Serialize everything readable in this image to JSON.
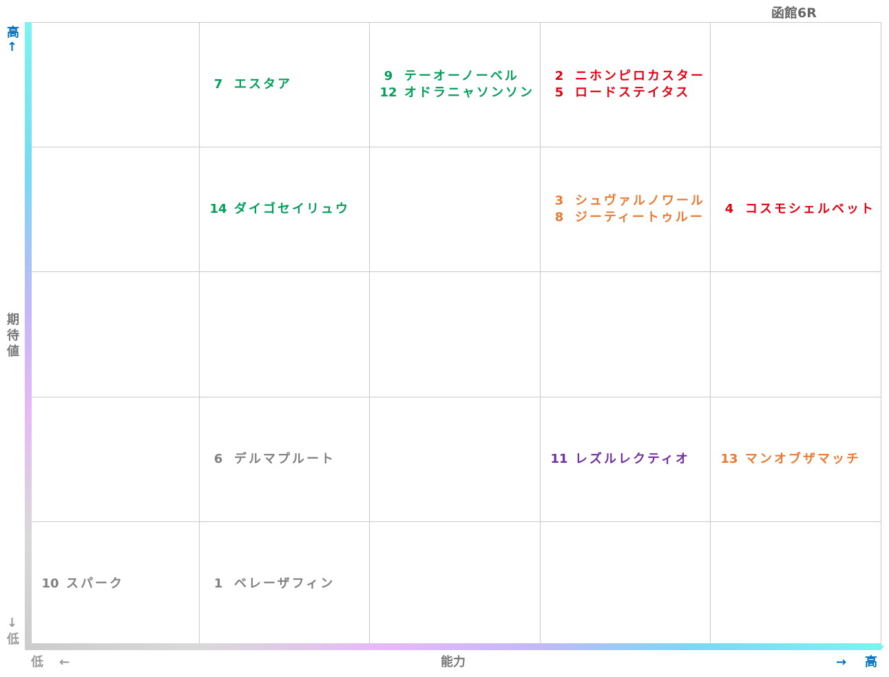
{
  "chart_data": {
    "type": "table",
    "title": "函館6R",
    "ylabel": "期待値",
    "xlabel": "能力",
    "y_high": "高",
    "y_low": "低",
    "x_low": "低",
    "x_high": "高",
    "up_arrow": "↑",
    "down_arrow": "↓",
    "left_arrow": "←",
    "right_arrow": "→",
    "rows": 5,
    "cols": 5,
    "colors": {
      "green": "#00a05a",
      "red": "#e60012",
      "orange": "#ea7a32",
      "purple": "#7030a0",
      "gray": "#808080",
      "blue": "#0070c0"
    },
    "entries": [
      {
        "no": "7",
        "name": "エスタア",
        "row": 0,
        "col": 1,
        "color": "green"
      },
      {
        "no": "9",
        "name": "テーオーノーベル",
        "row": 0,
        "col": 2,
        "color": "green"
      },
      {
        "no": "12",
        "name": "オドラニャソンソン",
        "row": 0,
        "col": 2,
        "color": "green"
      },
      {
        "no": "2",
        "name": "ニホンピロカスター",
        "row": 0,
        "col": 3,
        "color": "red"
      },
      {
        "no": "5",
        "name": "ロードステイタス",
        "row": 0,
        "col": 3,
        "color": "red"
      },
      {
        "no": "14",
        "name": "ダイゴセイリュウ",
        "row": 1,
        "col": 1,
        "color": "green"
      },
      {
        "no": "3",
        "name": "シュヴァルノワール",
        "row": 1,
        "col": 3,
        "color": "orange"
      },
      {
        "no": "8",
        "name": "ジーティートゥルー",
        "row": 1,
        "col": 3,
        "color": "orange"
      },
      {
        "no": "4",
        "name": "コスモシェルベット",
        "row": 1,
        "col": 4,
        "color": "red"
      },
      {
        "no": "6",
        "name": "デルマプルート",
        "row": 3,
        "col": 1,
        "color": "gray"
      },
      {
        "no": "11",
        "name": "レズルレクティオ",
        "row": 3,
        "col": 3,
        "color": "purple"
      },
      {
        "no": "13",
        "name": "マンオブザマッチ",
        "row": 3,
        "col": 4,
        "color": "orange"
      },
      {
        "no": "10",
        "name": "スパーク",
        "row": 4,
        "col": 0,
        "color": "gray"
      },
      {
        "no": "1",
        "name": "ベレーザフィン",
        "row": 4,
        "col": 1,
        "color": "gray"
      }
    ]
  }
}
